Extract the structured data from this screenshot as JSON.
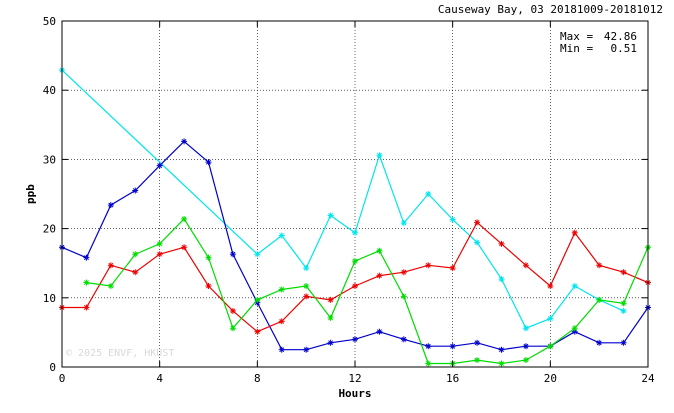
{
  "header": {
    "title": "Causeway Bay, 03 20181009-20181012"
  },
  "stats": {
    "max_label": "Max =",
    "max_value": "42.86",
    "min_label": "Min =",
    "min_value": "0.51"
  },
  "watermark": "© 2025 ENVF, HKUST",
  "colors": {
    "background": "#ffffff",
    "grid": "#000000",
    "axis": "#000000"
  },
  "chart_data": {
    "type": "line",
    "xlabel": "Hours",
    "ylabel": "ppb",
    "xlim": [
      0,
      24
    ],
    "ylim": [
      0,
      50
    ],
    "xticks": [
      0,
      4,
      8,
      12,
      16,
      20,
      24
    ],
    "yticks": [
      0,
      10,
      20,
      30,
      40,
      50
    ],
    "grid": "dotted",
    "series": [
      {
        "color": "#00e5ee",
        "points": [
          [
            0,
            42.9
          ],
          [
            8,
            16.3
          ],
          [
            9,
            19.0
          ],
          [
            10,
            14.3
          ],
          [
            11,
            21.9
          ],
          [
            12,
            19.4
          ],
          [
            13,
            30.6
          ],
          [
            14,
            20.8
          ],
          [
            15,
            25.0
          ],
          [
            16,
            21.3
          ],
          [
            17,
            18.0
          ],
          [
            18,
            12.7
          ],
          [
            19,
            5.6
          ],
          [
            20,
            7.0
          ],
          [
            21,
            11.7
          ],
          [
            22,
            9.7
          ],
          [
            23,
            8.1
          ]
        ]
      },
      {
        "color": "#0000cd",
        "points": [
          [
            0,
            17.3
          ],
          [
            1,
            15.8
          ],
          [
            2,
            23.4
          ],
          [
            3,
            25.5
          ],
          [
            4,
            29.1
          ],
          [
            5,
            32.6
          ],
          [
            6,
            29.6
          ],
          [
            7,
            16.3
          ],
          [
            8,
            9.3
          ],
          [
            9,
            2.5
          ],
          [
            10,
            2.5
          ],
          [
            11,
            3.5
          ],
          [
            12,
            4.0
          ],
          [
            13,
            5.1
          ],
          [
            14,
            4.0
          ],
          [
            15,
            3.0
          ],
          [
            16,
            3.0
          ],
          [
            17,
            3.5
          ],
          [
            18,
            2.5
          ],
          [
            19,
            3.0
          ],
          [
            20,
            3.0
          ],
          [
            21,
            5.1
          ],
          [
            22,
            3.5
          ],
          [
            23,
            3.5
          ],
          [
            24,
            8.6
          ]
        ]
      },
      {
        "color": "#ee0000",
        "points": [
          [
            0,
            8.6
          ],
          [
            1,
            8.6
          ],
          [
            2,
            14.7
          ],
          [
            3,
            13.7
          ],
          [
            4,
            16.3
          ],
          [
            5,
            17.3
          ],
          [
            6,
            11.7
          ],
          [
            7,
            8.1
          ],
          [
            8,
            5.1
          ],
          [
            9,
            6.6
          ],
          [
            10,
            10.2
          ],
          [
            11,
            9.7
          ],
          [
            12,
            11.7
          ],
          [
            13,
            13.2
          ],
          [
            14,
            13.7
          ],
          [
            15,
            14.7
          ],
          [
            16,
            14.3
          ],
          [
            17,
            20.9
          ],
          [
            18,
            17.8
          ],
          [
            19,
            14.7
          ],
          [
            20,
            11.7
          ],
          [
            21,
            19.4
          ],
          [
            22,
            14.7
          ],
          [
            23,
            13.7
          ],
          [
            24,
            12.2
          ]
        ]
      },
      {
        "color": "#00dd00",
        "points": [
          [
            1,
            12.2
          ],
          [
            2,
            11.7
          ],
          [
            3,
            16.3
          ],
          [
            4,
            17.8
          ],
          [
            5,
            21.4
          ],
          [
            6,
            15.8
          ],
          [
            7,
            5.6
          ],
          [
            8,
            9.7
          ],
          [
            9,
            11.2
          ],
          [
            10,
            11.7
          ],
          [
            11,
            7.1
          ],
          [
            12,
            15.3
          ],
          [
            13,
            16.8
          ],
          [
            14,
            10.2
          ],
          [
            15,
            0.5
          ],
          [
            16,
            0.5
          ],
          [
            17,
            1.0
          ],
          [
            18,
            0.5
          ],
          [
            19,
            1.0
          ],
          [
            20,
            3.0
          ],
          [
            21,
            5.6
          ],
          [
            22,
            9.7
          ],
          [
            23,
            9.2
          ],
          [
            24,
            17.3
          ]
        ]
      }
    ]
  }
}
